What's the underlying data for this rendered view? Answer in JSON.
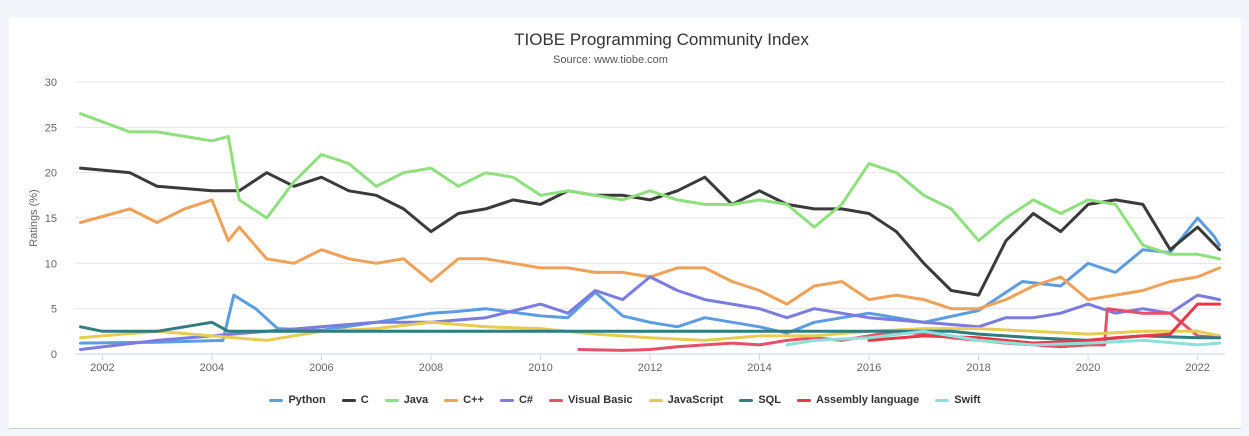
{
  "chart_data": {
    "type": "line",
    "title": "TIOBE Programming Community Index",
    "subtitle": "Source: www.tiobe.com",
    "ylabel": "Ratings (%)",
    "xlabel": "",
    "xlim": [
      2001.5,
      2022.5
    ],
    "ylim": [
      0,
      30
    ],
    "yticks": [
      0,
      5,
      10,
      15,
      20,
      25,
      30
    ],
    "xticks": [
      2002,
      2004,
      2006,
      2008,
      2010,
      2012,
      2014,
      2016,
      2018,
      2020,
      2022
    ],
    "grid": "horizontal",
    "legend_position": "bottom",
    "series": [
      {
        "name": "Python",
        "color": "#5b9de0",
        "x": [
          2001.6,
          2003,
          2004.2,
          2004.4,
          2004.8,
          2005.2,
          2006,
          2007,
          2008,
          2008.5,
          2009,
          2010,
          2010.5,
          2011,
          2011.5,
          2012,
          2012.5,
          2013,
          2014,
          2014.5,
          2015,
          2016,
          2017,
          2018,
          2018.8,
          2019.5,
          2020,
          2020.5,
          2021,
          2021.5,
          2022,
          2022.3,
          2022.4
        ],
        "y": [
          1.2,
          1.3,
          1.5,
          6.5,
          5.0,
          2.8,
          2.6,
          3.5,
          4.5,
          4.7,
          5.0,
          4.2,
          4.0,
          6.8,
          4.2,
          3.5,
          3.0,
          4.0,
          3.0,
          2.3,
          3.5,
          4.5,
          3.5,
          4.8,
          8.0,
          7.5,
          10.0,
          9.0,
          11.5,
          11.2,
          15.0,
          13.0,
          12.0
        ]
      },
      {
        "name": "C",
        "color": "#3a3a3a",
        "x": [
          2001.6,
          2002.5,
          2003,
          2004,
          2004.5,
          2005,
          2005.5,
          2006,
          2006.5,
          2007,
          2007.5,
          2008,
          2008.5,
          2009,
          2009.5,
          2010,
          2010.5,
          2011,
          2011.5,
          2012,
          2012.5,
          2013,
          2013.5,
          2014,
          2014.5,
          2015,
          2015.5,
          2016,
          2016.5,
          2017,
          2017.5,
          2018,
          2018.5,
          2019,
          2019.5,
          2020,
          2020.5,
          2021,
          2021.5,
          2022,
          2022.4
        ],
        "y": [
          20.5,
          20,
          18.5,
          18,
          18,
          20,
          18.5,
          19.5,
          18,
          17.5,
          16,
          13.5,
          15.5,
          16,
          17,
          16.5,
          18,
          17.5,
          17.5,
          17,
          18,
          19.5,
          16.5,
          18,
          16.5,
          16,
          16,
          15.5,
          13.5,
          10,
          7,
          6.5,
          12.5,
          15.5,
          13.5,
          16.5,
          17,
          16.5,
          11.5,
          14,
          11.5
        ]
      },
      {
        "name": "Java",
        "color": "#8ee07c",
        "x": [
          2001.6,
          2002.5,
          2003,
          2003.5,
          2004,
          2004.3,
          2004.5,
          2005,
          2005.5,
          2006,
          2006.5,
          2007,
          2007.5,
          2008,
          2008.5,
          2009,
          2009.5,
          2010,
          2010.5,
          2011,
          2011.5,
          2012,
          2012.5,
          2013,
          2013.5,
          2014,
          2014.5,
          2015,
          2015.5,
          2016,
          2016.5,
          2017,
          2017.5,
          2018,
          2018.5,
          2019,
          2019.5,
          2020,
          2020.5,
          2021,
          2021.5,
          2022,
          2022.4
        ],
        "y": [
          26.5,
          24.5,
          24.5,
          24,
          23.5,
          24,
          17,
          15,
          19,
          22,
          21,
          18.5,
          20,
          20.5,
          18.5,
          20,
          19.5,
          17.5,
          18,
          17.5,
          17,
          18,
          17,
          16.5,
          16.5,
          17,
          16.5,
          14,
          16.5,
          21,
          20,
          17.5,
          16,
          12.5,
          15,
          17,
          15.5,
          17,
          16.5,
          12,
          11,
          11,
          10.5
        ]
      },
      {
        "name": "C++",
        "color": "#f0a158",
        "x": [
          2001.6,
          2002.5,
          2003,
          2003.5,
          2004,
          2004.3,
          2004.5,
          2005,
          2005.5,
          2006,
          2006.5,
          2007,
          2007.5,
          2008,
          2008.5,
          2009,
          2009.5,
          2010,
          2010.5,
          2011,
          2011.5,
          2012,
          2012.5,
          2013,
          2013.5,
          2014,
          2014.5,
          2015,
          2015.5,
          2016,
          2016.5,
          2017,
          2017.5,
          2018,
          2018.5,
          2019,
          2019.5,
          2020,
          2020.5,
          2021,
          2021.5,
          2022,
          2022.4
        ],
        "y": [
          14.5,
          16,
          14.5,
          16,
          17,
          12.5,
          14,
          10.5,
          10,
          11.5,
          10.5,
          10,
          10.5,
          8,
          10.5,
          10.5,
          10,
          9.5,
          9.5,
          9,
          9,
          8.5,
          9.5,
          9.5,
          8,
          7,
          5.5,
          7.5,
          8,
          6,
          6.5,
          6,
          5,
          5,
          6,
          7.5,
          8.5,
          6,
          6.5,
          7,
          8,
          8.5,
          9.5
        ]
      },
      {
        "name": "C#",
        "color": "#7b7be0",
        "x": [
          2001.6,
          2003,
          2004,
          2005,
          2006,
          2007,
          2008,
          2009,
          2010,
          2010.5,
          2011,
          2011.5,
          2012,
          2012.5,
          2013,
          2013.5,
          2014,
          2014.5,
          2015,
          2016,
          2017,
          2018,
          2018.5,
          2019,
          2019.5,
          2020,
          2020.5,
          2021,
          2021.5,
          2022,
          2022.4
        ],
        "y": [
          0.5,
          1.5,
          2,
          2.5,
          3,
          3.5,
          3.5,
          4,
          5.5,
          4.5,
          7,
          6,
          8.5,
          7,
          6,
          5.5,
          5,
          4,
          5,
          4,
          3.5,
          3,
          4,
          4,
          4.5,
          5.5,
          4.5,
          5,
          4.5,
          6.5,
          6
        ]
      },
      {
        "name": "Visual Basic",
        "color": "#e8506a",
        "x": [
          2010.7,
          2011.5,
          2012,
          2012.5,
          2013,
          2013.5,
          2014,
          2014.5,
          2015,
          2015.5,
          2016,
          2016.5,
          2017,
          2017.5,
          2018,
          2018.5,
          2019,
          2019.5,
          2020,
          2020.3,
          2020.35,
          2021,
          2021.5,
          2022,
          2022.4
        ],
        "y": [
          0.5,
          0.4,
          0.5,
          0.8,
          1,
          1.2,
          1,
          1.5,
          1.8,
          1.5,
          2,
          2.5,
          2.2,
          1.8,
          1.5,
          1.2,
          1,
          0.8,
          1,
          1,
          5,
          4.5,
          4.5,
          2,
          1.8
        ]
      },
      {
        "name": "JavaScript",
        "color": "#e6cc55",
        "x": [
          2001.6,
          2003,
          2004,
          2005,
          2006,
          2007,
          2008,
          2009,
          2010,
          2011,
          2012,
          2013,
          2014,
          2015,
          2016,
          2017,
          2018,
          2019,
          2020,
          2021,
          2022,
          2022.4
        ],
        "y": [
          1.8,
          2.5,
          2,
          1.5,
          2.5,
          2.8,
          3.5,
          3,
          2.8,
          2.2,
          1.8,
          1.5,
          2,
          2,
          2.5,
          2.8,
          2.8,
          2.5,
          2.2,
          2.5,
          2.5,
          2
        ]
      },
      {
        "name": "SQL",
        "color": "#2f7d80",
        "x": [
          2001.6,
          2002,
          2003,
          2003.5,
          2004,
          2004.3,
          2004.4,
          2010,
          2015,
          2017.5,
          2018,
          2019,
          2020,
          2021,
          2022,
          2022.4
        ],
        "y": [
          3,
          2.5,
          2.5,
          3,
          3.5,
          2.5,
          2.5,
          2.5,
          2.5,
          2.5,
          2.2,
          1.8,
          1.5,
          2,
          1.8,
          1.8
        ]
      },
      {
        "name": "Assembly language",
        "color": "#e63848",
        "x": [
          2016,
          2017,
          2018,
          2019,
          2020,
          2020.5,
          2021,
          2021.5,
          2022,
          2022.4
        ],
        "y": [
          1.5,
          2,
          1.8,
          1.2,
          1.5,
          1.8,
          2,
          2.2,
          5.5,
          5.5
        ]
      },
      {
        "name": "Swift",
        "color": "#8de0d8",
        "x": [
          2014.5,
          2015,
          2016,
          2017,
          2018,
          2019,
          2020,
          2021,
          2022,
          2022.4
        ],
        "y": [
          1,
          1.5,
          1.8,
          2.5,
          1.5,
          1,
          1.2,
          1.5,
          1,
          1.2
        ]
      }
    ]
  }
}
